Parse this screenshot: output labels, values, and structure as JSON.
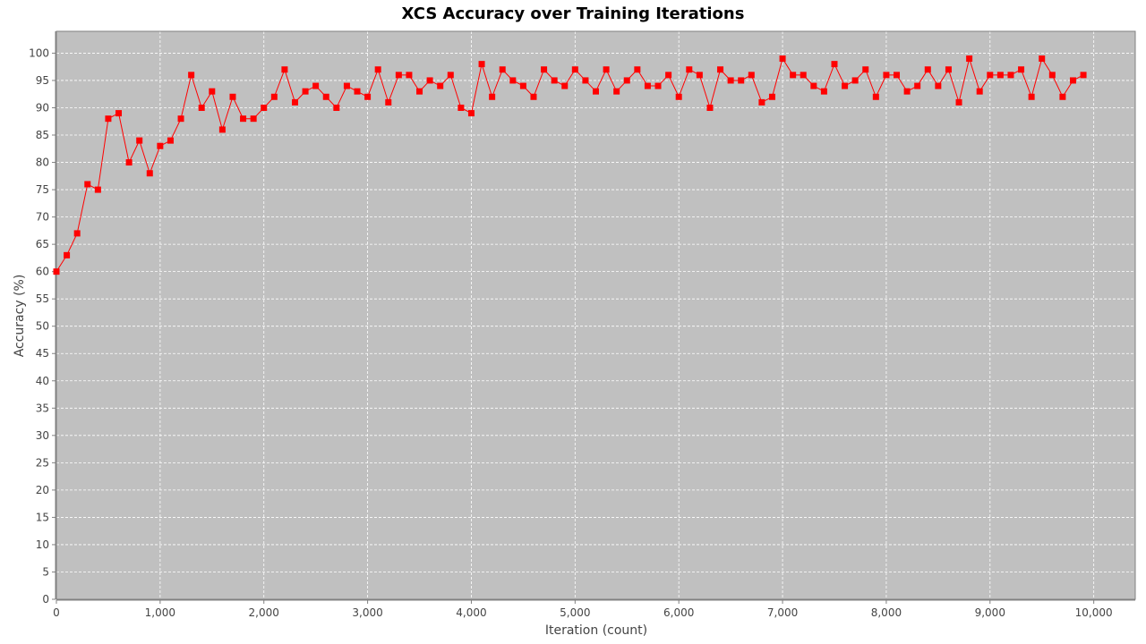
{
  "chart_data": {
    "type": "line",
    "title": "XCS Accuracy over Training Iterations",
    "xlabel": "Iteration (count)",
    "ylabel": "Accuracy (%)",
    "xlim": [
      0,
      10400
    ],
    "ylim": [
      0,
      104
    ],
    "x_ticks": [
      0,
      1000,
      2000,
      3000,
      4000,
      5000,
      6000,
      7000,
      8000,
      9000,
      10000
    ],
    "x_tick_labels": [
      "0",
      "1,000",
      "2,000",
      "3,000",
      "4,000",
      "5,000",
      "6,000",
      "7,000",
      "8,000",
      "9,000",
      "10,000"
    ],
    "y_ticks": [
      0,
      5,
      10,
      15,
      20,
      25,
      30,
      35,
      40,
      45,
      50,
      55,
      60,
      65,
      70,
      75,
      80,
      85,
      90,
      95,
      100
    ],
    "y_tick_labels": [
      "0",
      "5",
      "10",
      "15",
      "20",
      "25",
      "30",
      "35",
      "40",
      "45",
      "50",
      "55",
      "60",
      "65",
      "70",
      "75",
      "80",
      "85",
      "90",
      "95",
      "100"
    ],
    "grid": true,
    "legend": "none",
    "colors": {
      "series": "#ff0000",
      "plot_background": "#c0c0c0",
      "grid": "#ffffff",
      "tick_text": "#444444"
    },
    "x": [
      0,
      100,
      200,
      300,
      400,
      500,
      600,
      700,
      800,
      900,
      1000,
      1100,
      1200,
      1300,
      1400,
      1500,
      1600,
      1700,
      1800,
      1900,
      2000,
      2100,
      2200,
      2300,
      2400,
      2500,
      2600,
      2700,
      2800,
      2900,
      3000,
      3100,
      3200,
      3300,
      3400,
      3500,
      3600,
      3700,
      3800,
      3900,
      4000,
      4100,
      4200,
      4300,
      4400,
      4500,
      4600,
      4700,
      4800,
      4900,
      5000,
      5100,
      5200,
      5300,
      5400,
      5500,
      5600,
      5700,
      5800,
      5900,
      6000,
      6100,
      6200,
      6300,
      6400,
      6500,
      6600,
      6700,
      6800,
      6900,
      7000,
      7100,
      7200,
      7300,
      7400,
      7500,
      7600,
      7700,
      7800,
      7900,
      8000,
      8100,
      8200,
      8300,
      8400,
      8500,
      8600,
      8700,
      8800,
      8900,
      9000,
      9100,
      9200,
      9300,
      9400,
      9500,
      9600,
      9700,
      9800,
      9900
    ],
    "series": [
      {
        "values": [
          60,
          63,
          67,
          76,
          75,
          88,
          89,
          80,
          84,
          78,
          83,
          84,
          88,
          96,
          90,
          93,
          86,
          92,
          88,
          88,
          90,
          92,
          97,
          91,
          93,
          94,
          92,
          90,
          94,
          93,
          92,
          97,
          91,
          96,
          96,
          93,
          95,
          94,
          96,
          90,
          89,
          98,
          92,
          97,
          95,
          94,
          92,
          97,
          95,
          94,
          97,
          95,
          93,
          97,
          93,
          95,
          97,
          94,
          94,
          96,
          92,
          97,
          96,
          90,
          97,
          95,
          95,
          96,
          91,
          92,
          99,
          96,
          96,
          94,
          93,
          98,
          94,
          95,
          97,
          92,
          96,
          96,
          93,
          94,
          97,
          94,
          97,
          91,
          99,
          93,
          96,
          96,
          96,
          97,
          92,
          99,
          96,
          92,
          95,
          96
        ]
      }
    ]
  }
}
